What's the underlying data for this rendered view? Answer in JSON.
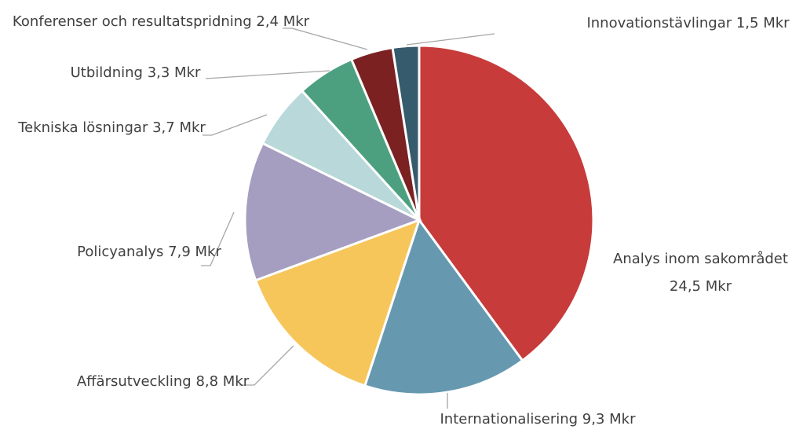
{
  "chart_data": {
    "type": "pie",
    "categories": [
      "Analys inom sakområdet",
      "Internationalisering",
      "Affärsutveckling",
      "Policyanalys",
      "Tekniska lösningar",
      "Utbildning",
      "Konferenser och resultatspridning",
      "Innovationstävlingar"
    ],
    "values": [
      24.5,
      9.3,
      8.8,
      7.9,
      3.7,
      3.3,
      2.4,
      1.5
    ],
    "value_labels": [
      "24,5 Mkr",
      "9,3 Mkr",
      "8,8 Mkr",
      "7,9 Mkr",
      "3,7 Mkr",
      "3,3 Mkr",
      "2,4 Mkr",
      "1,5 Mkr"
    ],
    "colors": [
      "#c83b3b",
      "#6699b0",
      "#f6c65b",
      "#a59ec0",
      "#b9d8da",
      "#4da07f",
      "#7b2121",
      "#365b6d"
    ]
  }
}
